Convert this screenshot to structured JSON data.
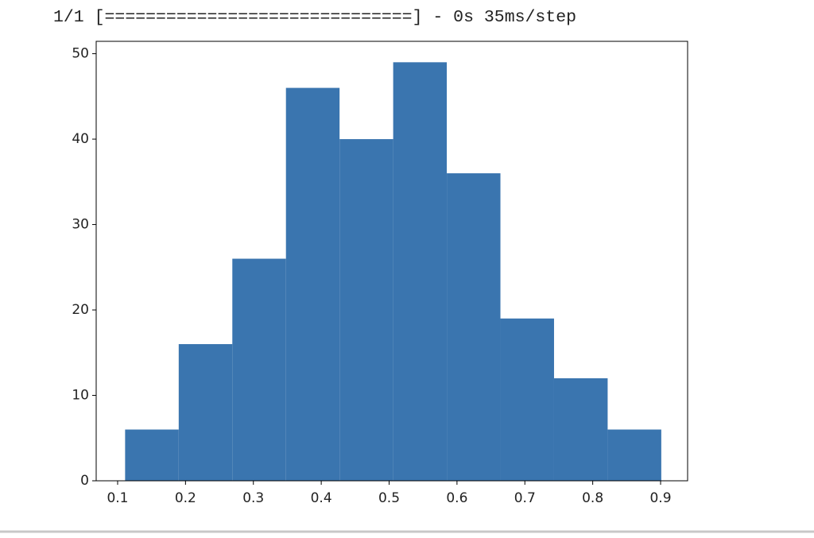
{
  "console": {
    "text": "1/1 [==============================] - 0s 35ms/step"
  },
  "chart_data": {
    "type": "histogram",
    "bins": [
      0.111,
      0.19,
      0.269,
      0.348,
      0.427,
      0.506,
      0.585,
      0.664,
      0.743,
      0.822,
      0.901
    ],
    "counts": [
      6,
      16,
      26,
      46,
      40,
      49,
      36,
      19,
      12,
      6
    ],
    "color": "#3a75af",
    "xlim": [
      0.0684,
      0.9398
    ],
    "xticks": [
      0.1,
      0.2,
      0.3,
      0.4,
      0.5,
      0.6,
      0.7,
      0.8,
      0.9
    ],
    "ylim": [
      0,
      51.45
    ],
    "yticks": [
      0,
      10,
      20,
      30,
      40,
      50
    ]
  }
}
